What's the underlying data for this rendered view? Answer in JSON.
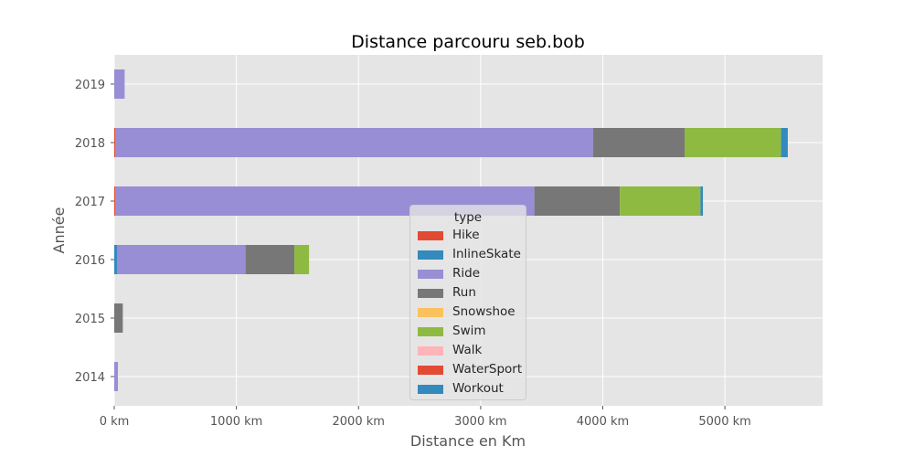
{
  "chart_data": {
    "type": "bar",
    "orientation": "horizontal",
    "stacked": true,
    "title": "Distance parcouru seb.bob",
    "xlabel": "Distance en Km",
    "ylabel": "Année",
    "categories": [
      "2014",
      "2015",
      "2016",
      "2017",
      "2018",
      "2019"
    ],
    "xlim": [
      0,
      5800
    ],
    "xticks": [
      0,
      1000,
      2000,
      3000,
      4000,
      5000
    ],
    "xtick_labels": [
      "0 km",
      "1000 km",
      "2000 km",
      "3000 km",
      "4000 km",
      "5000 km"
    ],
    "grid": true,
    "legend_title": "type",
    "legend_position": "lower-center",
    "series": [
      {
        "name": "Hike",
        "color": "#E24A33",
        "values": [
          0,
          0,
          0,
          10,
          10,
          0
        ]
      },
      {
        "name": "InlineSkate",
        "color": "#348ABD",
        "values": [
          0,
          0,
          25,
          0,
          0,
          0
        ]
      },
      {
        "name": "Ride",
        "color": "#988ED5",
        "values": [
          30,
          0,
          1050,
          3430,
          3910,
          85
        ]
      },
      {
        "name": "Run",
        "color": "#777777",
        "values": [
          0,
          70,
          400,
          700,
          750,
          0
        ]
      },
      {
        "name": "Snowshoe",
        "color": "#FBC15E",
        "values": [
          0,
          0,
          0,
          0,
          0,
          0
        ]
      },
      {
        "name": "Swim",
        "color": "#8EBA42",
        "values": [
          0,
          0,
          120,
          660,
          790,
          0
        ]
      },
      {
        "name": "Walk",
        "color": "#FFB5B8",
        "values": [
          0,
          0,
          0,
          0,
          0,
          0
        ]
      },
      {
        "name": "WaterSport",
        "color": "#E24A33",
        "values": [
          0,
          0,
          0,
          0,
          0,
          0
        ]
      },
      {
        "name": "Workout",
        "color": "#348ABD",
        "values": [
          0,
          0,
          0,
          20,
          55,
          0
        ]
      }
    ]
  }
}
